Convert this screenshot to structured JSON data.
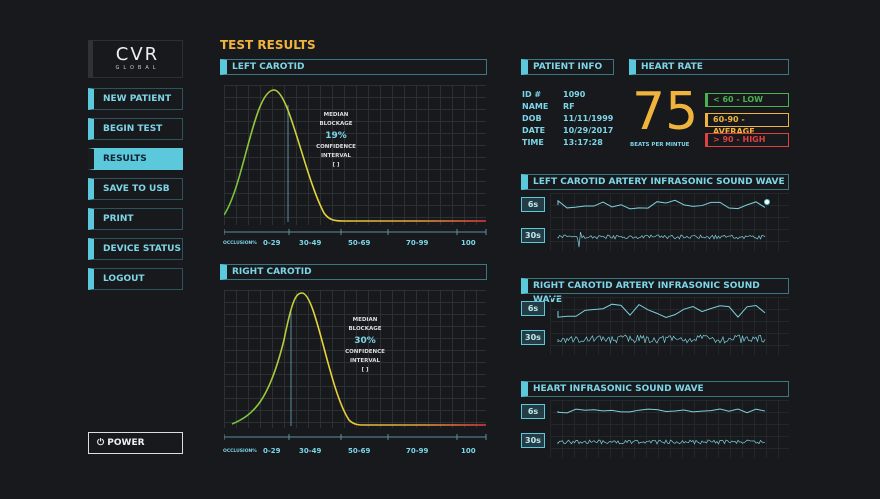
{
  "logo": {
    "name": "CVR",
    "sub": "GLOBAL"
  },
  "nav": [
    "NEW PATIENT",
    "BEGIN TEST",
    "RESULTS",
    "SAVE TO USB",
    "PRINT",
    "DEVICE STATUS",
    "LOGOUT"
  ],
  "power": "POWER",
  "title": "TEST RESULTS",
  "left": {
    "header": "LEFT CAROTID",
    "median_label": [
      "MEDIAN",
      "BLOCKAGE"
    ],
    "median": "19%",
    "ci_label": [
      "CONFIDENCE",
      "INTERVAL"
    ],
    "ci": "[ ]"
  },
  "right": {
    "header": "RIGHT CAROTID",
    "median_label": [
      "MEDIAN",
      "BLOCKAGE"
    ],
    "median": "30%",
    "ci_label": [
      "CONFIDENCE",
      "INTERVAL"
    ],
    "ci": "[ ]"
  },
  "axis": {
    "label": "OCCLUSION%",
    "ticks": [
      "0-29",
      "30-49",
      "50-69",
      "70-99",
      "100"
    ]
  },
  "patient": {
    "header": "PATIENT INFO",
    "rows": [
      [
        "ID #",
        "1090"
      ],
      [
        "NAME",
        "RF"
      ],
      [
        "DOB",
        "11/11/1999"
      ],
      [
        "DATE",
        "10/29/2017"
      ],
      [
        "TIME",
        "13:17:28"
      ]
    ]
  },
  "heart": {
    "header": "HEART RATE",
    "bpm": "75",
    "unit": "BEATS PER MINTUE",
    "ranges": [
      "< 60 - LOW",
      "60-90 - AVERAGE",
      "> 90 - HIGH"
    ],
    "colors": [
      "#4caf50",
      "#f0b43c",
      "#e04040"
    ]
  },
  "waves": [
    {
      "header": "LEFT CAROTID ARTERY INFRASONIC SOUND WAVE",
      "t1": "6s",
      "t2": "30s"
    },
    {
      "header": "RIGHT CAROTID ARTERY INFRASONIC SOUND WAVE",
      "t1": "6s",
      "t2": "30s"
    },
    {
      "header": "HEART INFRASONIC SOUND WAVE",
      "t1": "6s",
      "t2": "30s"
    }
  ]
}
